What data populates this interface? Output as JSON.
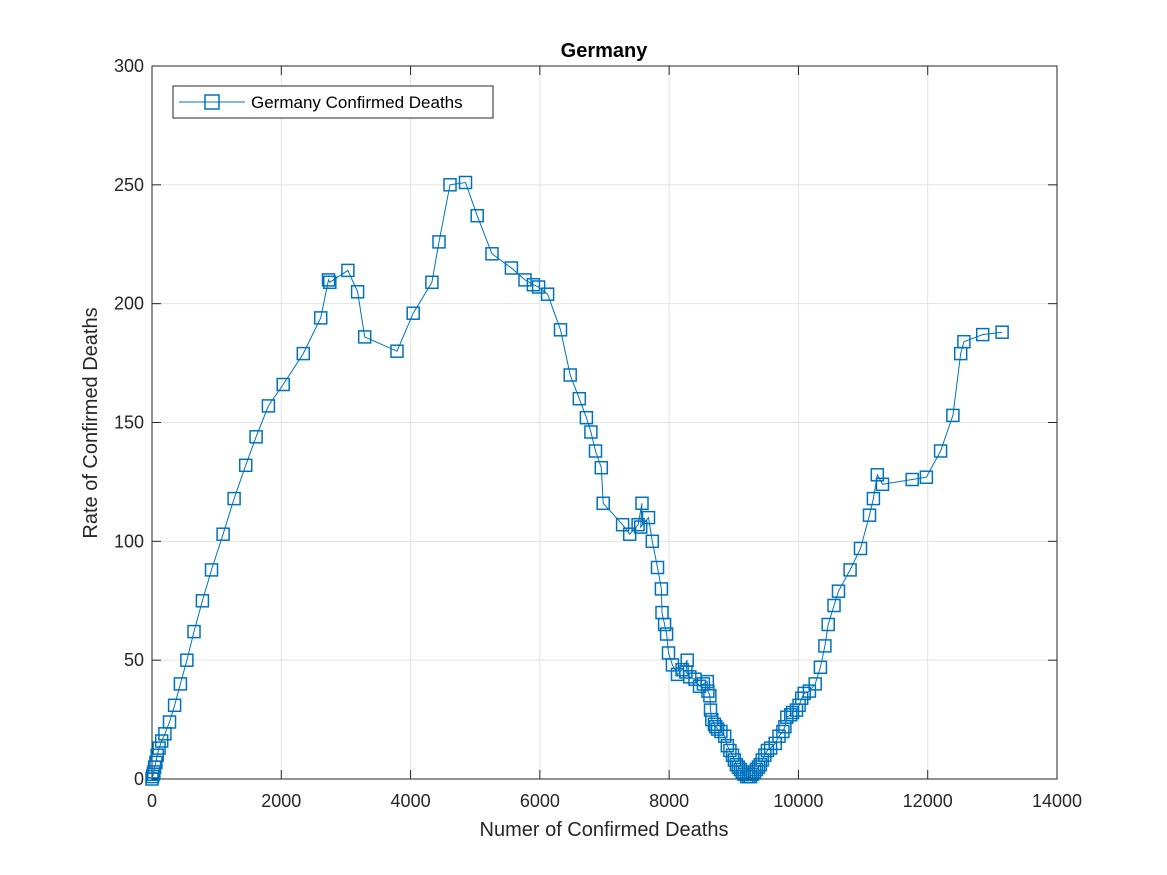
{
  "chart_data": {
    "type": "line",
    "title": "Germany",
    "xlabel": "Numer of Confirmed Deaths",
    "ylabel": "Rate of Confirmed Deaths",
    "xlim": [
      0,
      14000
    ],
    "ylim": [
      0,
      300
    ],
    "xticks": [
      0,
      2000,
      4000,
      6000,
      8000,
      10000,
      12000,
      14000
    ],
    "yticks": [
      0,
      50,
      100,
      150,
      200,
      250,
      300
    ],
    "grid": true,
    "legend_position": "top-left",
    "marker": "square",
    "series_color": "#0072BD",
    "series": [
      {
        "name": "Germany Confirmed Deaths",
        "points": [
          [
            0,
            0
          ],
          [
            10,
            1
          ],
          [
            20,
            2
          ],
          [
            30,
            3
          ],
          [
            40,
            5
          ],
          [
            60,
            7
          ],
          [
            80,
            10
          ],
          [
            110,
            13
          ],
          [
            150,
            16
          ],
          [
            200,
            19
          ],
          [
            270,
            24
          ],
          [
            350,
            31
          ],
          [
            440,
            40
          ],
          [
            540,
            50
          ],
          [
            650,
            62
          ],
          [
            780,
            75
          ],
          [
            920,
            88
          ],
          [
            1100,
            103
          ],
          [
            1270,
            118
          ],
          [
            1450,
            132
          ],
          [
            1610,
            144
          ],
          [
            1800,
            157
          ],
          [
            2030,
            166
          ],
          [
            2340,
            179
          ],
          [
            2610,
            194
          ],
          [
            2730,
            210
          ],
          [
            2750,
            209
          ],
          [
            3030,
            214
          ],
          [
            3180,
            205
          ],
          [
            3290,
            186
          ],
          [
            3790,
            180
          ],
          [
            4040,
            196
          ],
          [
            4330,
            209
          ],
          [
            4440,
            226
          ],
          [
            4610,
            250
          ],
          [
            4850,
            251
          ],
          [
            5030,
            237
          ],
          [
            5260,
            221
          ],
          [
            5560,
            215
          ],
          [
            5770,
            210
          ],
          [
            5900,
            208
          ],
          [
            5980,
            207
          ],
          [
            6120,
            204
          ],
          [
            6320,
            189
          ],
          [
            6470,
            170
          ],
          [
            6610,
            160
          ],
          [
            6720,
            152
          ],
          [
            6790,
            146
          ],
          [
            6860,
            138
          ],
          [
            6950,
            131
          ],
          [
            6980,
            116
          ],
          [
            7280,
            107
          ],
          [
            7390,
            103
          ],
          [
            7520,
            107
          ],
          [
            7580,
            116
          ],
          [
            7560,
            106
          ],
          [
            7680,
            110
          ],
          [
            7740,
            100
          ],
          [
            7820,
            89
          ],
          [
            7880,
            80
          ],
          [
            7890,
            70
          ],
          [
            7930,
            65
          ],
          [
            7960,
            61
          ],
          [
            7990,
            53
          ],
          [
            8050,
            48
          ],
          [
            8130,
            44
          ],
          [
            8200,
            46
          ],
          [
            8280,
            50
          ],
          [
            8260,
            45
          ],
          [
            8320,
            43
          ],
          [
            8400,
            42
          ],
          [
            8470,
            39
          ],
          [
            8530,
            40
          ],
          [
            8590,
            41
          ],
          [
            8600,
            37
          ],
          [
            8630,
            35
          ],
          [
            8640,
            29
          ],
          [
            8660,
            25
          ],
          [
            8700,
            23
          ],
          [
            8720,
            22
          ],
          [
            8750,
            21
          ],
          [
            8800,
            20
          ],
          [
            8860,
            18
          ],
          [
            8900,
            14
          ],
          [
            8940,
            12
          ],
          [
            8980,
            10
          ],
          [
            9010,
            8
          ],
          [
            9040,
            6
          ],
          [
            9070,
            5
          ],
          [
            9100,
            4
          ],
          [
            9130,
            3
          ],
          [
            9160,
            2
          ],
          [
            9200,
            1
          ],
          [
            9230,
            1
          ],
          [
            9260,
            1
          ],
          [
            9290,
            2
          ],
          [
            9320,
            3
          ],
          [
            9350,
            4
          ],
          [
            9380,
            5
          ],
          [
            9410,
            6
          ],
          [
            9440,
            8
          ],
          [
            9480,
            10
          ],
          [
            9520,
            12
          ],
          [
            9570,
            13
          ],
          [
            9640,
            15
          ],
          [
            9700,
            18
          ],
          [
            9760,
            20
          ],
          [
            9790,
            22
          ],
          [
            9820,
            26
          ],
          [
            9880,
            27
          ],
          [
            9910,
            28
          ],
          [
            9970,
            29
          ],
          [
            10010,
            31
          ],
          [
            10050,
            34
          ],
          [
            10090,
            36
          ],
          [
            10170,
            37
          ],
          [
            10260,
            40
          ],
          [
            10340,
            47
          ],
          [
            10410,
            56
          ],
          [
            10460,
            65
          ],
          [
            10550,
            73
          ],
          [
            10620,
            79
          ],
          [
            10800,
            88
          ],
          [
            10960,
            97
          ],
          [
            11100,
            111
          ],
          [
            11160,
            118
          ],
          [
            11220,
            128
          ],
          [
            11300,
            124
          ],
          [
            11760,
            126
          ],
          [
            11980,
            127
          ],
          [
            12200,
            138
          ],
          [
            12390,
            153
          ],
          [
            12510,
            179
          ],
          [
            12560,
            184
          ],
          [
            12850,
            187
          ],
          [
            13150,
            188
          ]
        ]
      }
    ]
  }
}
